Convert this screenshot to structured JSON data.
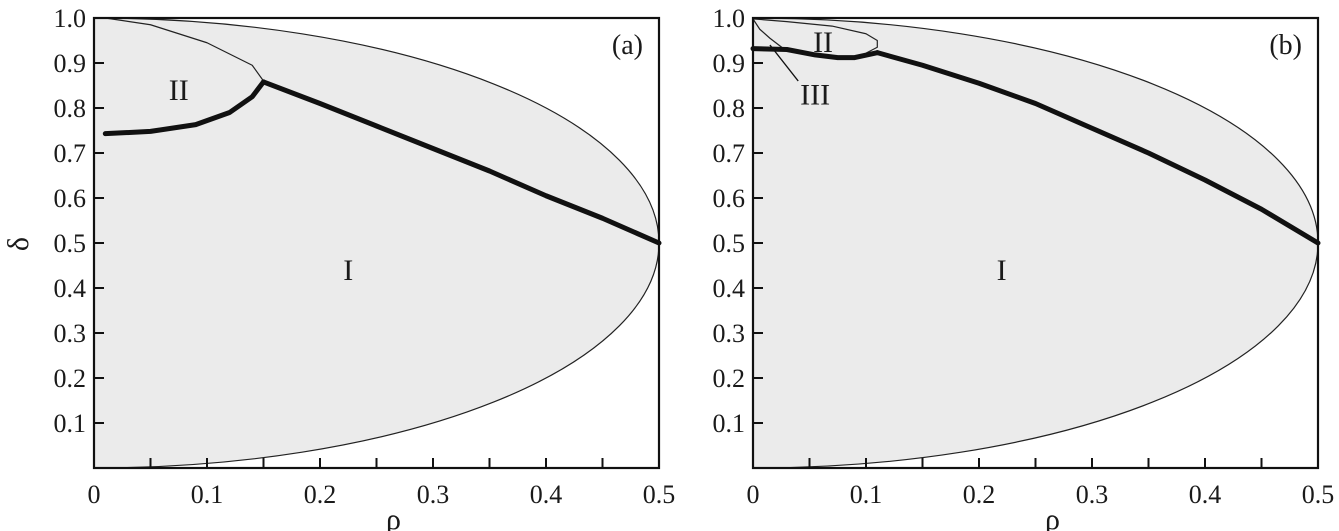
{
  "figure": {
    "ylabel": "δ",
    "xlabel": "ρ"
  },
  "chart_data": [
    {
      "type": "area",
      "panel": "(a)",
      "xlabel": "ρ",
      "ylabel": "δ",
      "xlim": [
        0,
        0.5
      ],
      "ylim": [
        0,
        1.0
      ],
      "x_ticks": [
        0,
        0.05,
        0.1,
        0.15,
        0.2,
        0.25,
        0.3,
        0.35,
        0.4,
        0.45,
        0.5
      ],
      "x_tick_labels": [
        "0",
        "0.1",
        "0.2",
        "0.3",
        "0.4",
        "0.5"
      ],
      "y_tick_labels": [
        "0.1",
        "0.2",
        "0.3",
        "0.4",
        "0.5",
        "0.6",
        "0.7",
        "0.8",
        "0.9",
        "1.0"
      ],
      "grid": false,
      "fill_color": "#ebebeb",
      "outer_boundary": {
        "description": "thin boundary curve",
        "upper": [
          [
            0,
            1.0
          ],
          [
            0.1,
            0.988
          ],
          [
            0.2,
            0.951
          ],
          [
            0.3,
            0.875
          ],
          [
            0.4,
            0.751
          ],
          [
            0.45,
            0.659
          ],
          [
            0.5,
            0.5
          ]
        ],
        "lower": [
          [
            0,
            0.0
          ],
          [
            0.1,
            0.012
          ],
          [
            0.2,
            0.049
          ],
          [
            0.3,
            0.125
          ],
          [
            0.4,
            0.249
          ],
          [
            0.45,
            0.341
          ],
          [
            0.5,
            0.5
          ]
        ]
      },
      "thin_curves": [
        {
          "points": [
            [
              0.01,
              1.0
            ],
            [
              0.05,
              0.985
            ],
            [
              0.1,
              0.945
            ],
            [
              0.14,
              0.895
            ],
            [
              0.15,
              0.86
            ]
          ]
        }
      ],
      "thick_curves": [
        {
          "points": [
            [
              0.01,
              0.743
            ],
            [
              0.05,
              0.748
            ],
            [
              0.09,
              0.763
            ],
            [
              0.12,
              0.79
            ],
            [
              0.14,
              0.825
            ],
            [
              0.15,
              0.858
            ]
          ]
        },
        {
          "points": [
            [
              0.15,
              0.858
            ],
            [
              0.2,
              0.81
            ],
            [
              0.25,
              0.76
            ],
            [
              0.3,
              0.71
            ],
            [
              0.35,
              0.66
            ],
            [
              0.4,
              0.605
            ],
            [
              0.45,
              0.555
            ],
            [
              0.5,
              0.5
            ]
          ]
        }
      ],
      "region_labels": [
        {
          "text": "II",
          "x": 0.075,
          "y": 0.84
        },
        {
          "text": "I",
          "x": 0.225,
          "y": 0.44
        }
      ]
    },
    {
      "type": "area",
      "panel": "(b)",
      "xlabel": "ρ",
      "ylabel": "",
      "xlim": [
        0,
        0.5
      ],
      "ylim": [
        0,
        1.0
      ],
      "x_ticks": [
        0,
        0.05,
        0.1,
        0.15,
        0.2,
        0.25,
        0.3,
        0.35,
        0.4,
        0.45,
        0.5
      ],
      "x_tick_labels": [
        "0",
        "0.1",
        "0.2",
        "0.3",
        "0.4",
        "0.5"
      ],
      "y_tick_labels": [
        "0.1",
        "0.2",
        "0.3",
        "0.4",
        "0.5",
        "0.6",
        "0.7",
        "0.8",
        "0.9",
        "1.0"
      ],
      "grid": false,
      "fill_color": "#ebebeb",
      "outer_boundary": {
        "description": "thin boundary curve",
        "upper": [
          [
            0,
            1.0
          ],
          [
            0.1,
            0.988
          ],
          [
            0.2,
            0.951
          ],
          [
            0.3,
            0.875
          ],
          [
            0.4,
            0.751
          ],
          [
            0.45,
            0.659
          ],
          [
            0.5,
            0.5
          ]
        ],
        "lower": [
          [
            0,
            0.0
          ],
          [
            0.1,
            0.012
          ],
          [
            0.2,
            0.049
          ],
          [
            0.3,
            0.125
          ],
          [
            0.4,
            0.249
          ],
          [
            0.45,
            0.341
          ],
          [
            0.5,
            0.5
          ]
        ]
      },
      "thin_curves": [
        {
          "points": [
            [
              0.0,
              0.998
            ],
            [
              0.03,
              0.992
            ],
            [
              0.07,
              0.982
            ],
            [
              0.1,
              0.965
            ],
            [
              0.11,
              0.95
            ],
            [
              0.11,
              0.935
            ],
            [
              0.1,
              0.922
            ]
          ]
        },
        {
          "points": [
            [
              0.0,
              0.998
            ],
            [
              0.006,
              0.975
            ],
            [
              0.015,
              0.955
            ],
            [
              0.028,
              0.93
            ]
          ]
        }
      ],
      "thick_curves": [
        {
          "points": [
            [
              0.0,
              0.932
            ],
            [
              0.03,
              0.93
            ],
            [
              0.055,
              0.918
            ],
            [
              0.075,
              0.912
            ],
            [
              0.09,
              0.912
            ],
            [
              0.11,
              0.923
            ]
          ]
        },
        {
          "points": [
            [
              0.11,
              0.923
            ],
            [
              0.15,
              0.895
            ],
            [
              0.2,
              0.855
            ],
            [
              0.25,
              0.81
            ],
            [
              0.3,
              0.755
            ],
            [
              0.35,
              0.7
            ],
            [
              0.4,
              0.64
            ],
            [
              0.45,
              0.575
            ],
            [
              0.5,
              0.5
            ]
          ]
        }
      ],
      "pointer_line": {
        "from": [
          0.015,
          0.94
        ],
        "to": [
          0.04,
          0.86
        ]
      },
      "region_labels": [
        {
          "text": "II",
          "x": 0.062,
          "y": 0.947
        },
        {
          "text": "III",
          "x": 0.055,
          "y": 0.83
        },
        {
          "text": "I",
          "x": 0.22,
          "y": 0.44
        }
      ]
    }
  ]
}
